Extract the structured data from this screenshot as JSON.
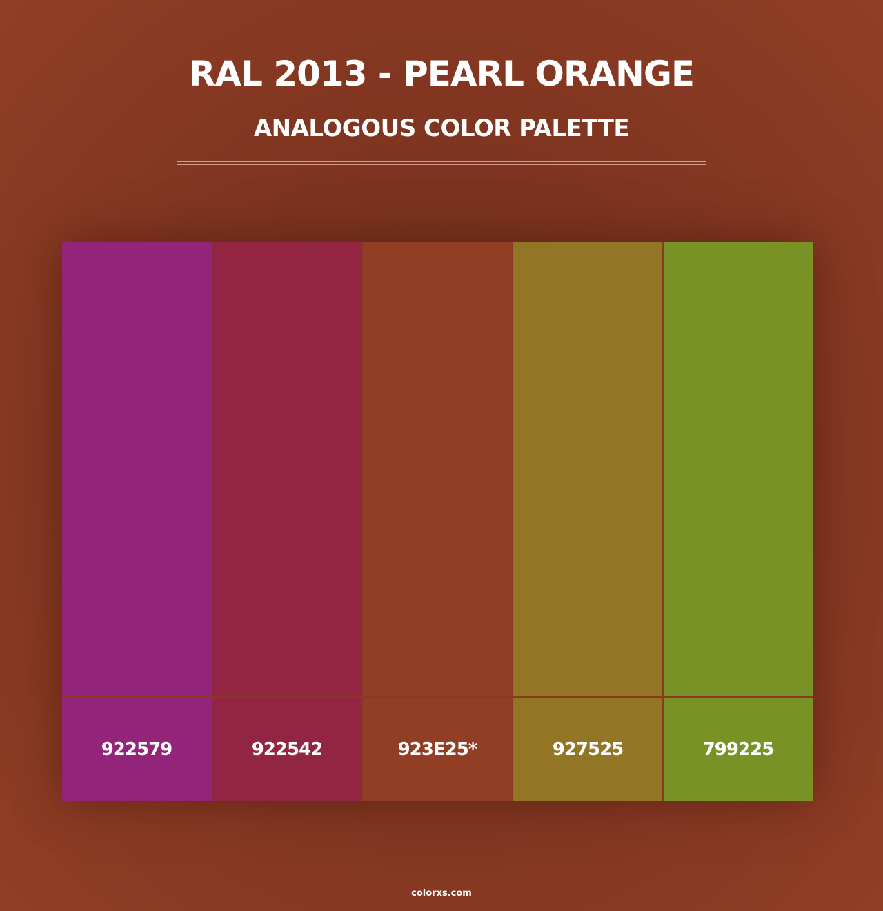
{
  "header": {
    "title": "RAL 2013 - PEARL ORANGE",
    "subtitle": "ANALOGOUS COLOR PALETTE"
  },
  "swatches": [
    {
      "label": "922579",
      "color": "#922579"
    },
    {
      "label": "922542",
      "color": "#922542"
    },
    {
      "label": "923E25*",
      "color": "#923E25"
    },
    {
      "label": "927525",
      "color": "#927525"
    },
    {
      "label": "799225",
      "color": "#799225"
    }
  ],
  "footer": "colorxs.com"
}
